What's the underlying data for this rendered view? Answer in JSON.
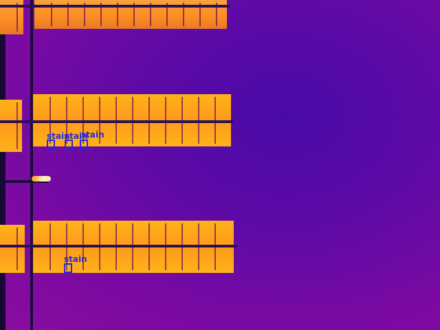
{
  "image": {
    "type": "thermal-infrared-photo",
    "palette": [
      "#4a0aa8",
      "#7a0aa2",
      "#ff9a1a",
      "#ffb21a",
      "#fff1c2"
    ]
  },
  "detections": [
    {
      "label": "stain"
    },
    {
      "label": "stain"
    },
    {
      "label": "stain"
    },
    {
      "label": "stain"
    }
  ]
}
